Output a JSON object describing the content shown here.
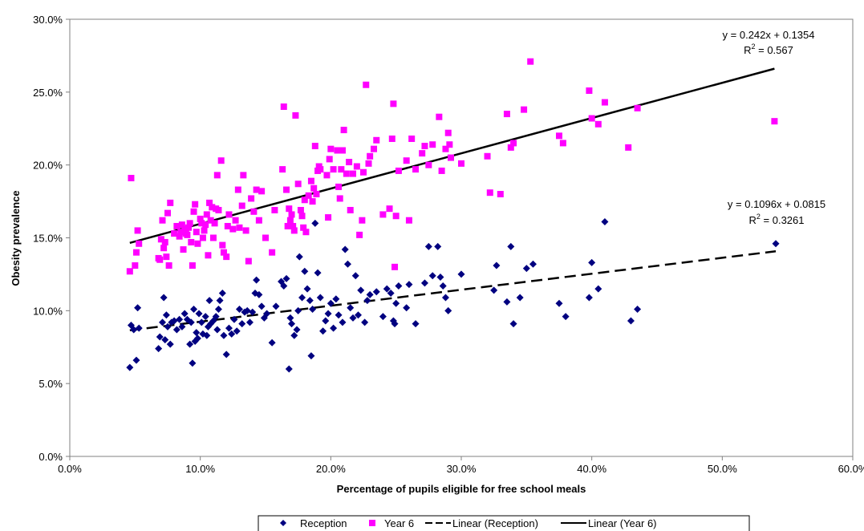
{
  "chart_data": {
    "type": "scatter",
    "title": "",
    "xlabel": "Percentage of pupils eligible for free school meals",
    "ylabel": "Obesity prevalence",
    "xlim": [
      0,
      0.6
    ],
    "ylim": [
      0,
      0.3
    ],
    "x_ticks": [
      "0.0%",
      "10.0%",
      "20.0%",
      "30.0%",
      "40.0%",
      "50.0%",
      "60.0%"
    ],
    "y_ticks": [
      "0.0%",
      "5.0%",
      "10.0%",
      "15.0%",
      "20.0%",
      "25.0%",
      "30.0%"
    ],
    "grid": false,
    "legend_position": "bottom",
    "series": [
      {
        "name": "Reception",
        "color": "#000080",
        "marker": "diamond",
        "points": [
          [
            0.046,
            0.061
          ],
          [
            0.047,
            0.09
          ],
          [
            0.049,
            0.087
          ],
          [
            0.051,
            0.066
          ],
          [
            0.052,
            0.102
          ],
          [
            0.053,
            0.088
          ],
          [
            0.068,
            0.074
          ],
          [
            0.069,
            0.082
          ],
          [
            0.071,
            0.092
          ],
          [
            0.072,
            0.109
          ],
          [
            0.073,
            0.08
          ],
          [
            0.074,
            0.097
          ],
          [
            0.075,
            0.089
          ],
          [
            0.077,
            0.077
          ],
          [
            0.078,
            0.092
          ],
          [
            0.08,
            0.093
          ],
          [
            0.082,
            0.087
          ],
          [
            0.084,
            0.094
          ],
          [
            0.086,
            0.089
          ],
          [
            0.088,
            0.098
          ],
          [
            0.09,
            0.094
          ],
          [
            0.092,
            0.077
          ],
          [
            0.093,
            0.092
          ],
          [
            0.094,
            0.064
          ],
          [
            0.095,
            0.101
          ],
          [
            0.096,
            0.079
          ],
          [
            0.097,
            0.085
          ],
          [
            0.098,
            0.081
          ],
          [
            0.099,
            0.098
          ],
          [
            0.101,
            0.092
          ],
          [
            0.102,
            0.084
          ],
          [
            0.104,
            0.096
          ],
          [
            0.105,
            0.083
          ],
          [
            0.106,
            0.089
          ],
          [
            0.107,
            0.107
          ],
          [
            0.108,
            0.091
          ],
          [
            0.11,
            0.093
          ],
          [
            0.112,
            0.096
          ],
          [
            0.113,
            0.087
          ],
          [
            0.114,
            0.101
          ],
          [
            0.115,
            0.107
          ],
          [
            0.117,
            0.112
          ],
          [
            0.118,
            0.083
          ],
          [
            0.12,
            0.07
          ],
          [
            0.122,
            0.088
          ],
          [
            0.124,
            0.084
          ],
          [
            0.126,
            0.094
          ],
          [
            0.128,
            0.086
          ],
          [
            0.13,
            0.101
          ],
          [
            0.132,
            0.091
          ],
          [
            0.134,
            0.099
          ],
          [
            0.136,
            0.1
          ],
          [
            0.138,
            0.092
          ],
          [
            0.14,
            0.099
          ],
          [
            0.142,
            0.112
          ],
          [
            0.143,
            0.121
          ],
          [
            0.145,
            0.111
          ],
          [
            0.147,
            0.103
          ],
          [
            0.149,
            0.095
          ],
          [
            0.151,
            0.098
          ],
          [
            0.155,
            0.078
          ],
          [
            0.158,
            0.103
          ],
          [
            0.162,
            0.12
          ],
          [
            0.164,
            0.117
          ],
          [
            0.166,
            0.122
          ],
          [
            0.168,
            0.06
          ],
          [
            0.169,
            0.095
          ],
          [
            0.17,
            0.091
          ],
          [
            0.172,
            0.083
          ],
          [
            0.174,
            0.087
          ],
          [
            0.175,
            0.1
          ],
          [
            0.176,
            0.137
          ],
          [
            0.178,
            0.109
          ],
          [
            0.18,
            0.127
          ],
          [
            0.182,
            0.115
          ],
          [
            0.184,
            0.107
          ],
          [
            0.185,
            0.069
          ],
          [
            0.186,
            0.101
          ],
          [
            0.188,
            0.16
          ],
          [
            0.19,
            0.126
          ],
          [
            0.192,
            0.109
          ],
          [
            0.194,
            0.086
          ],
          [
            0.196,
            0.093
          ],
          [
            0.198,
            0.098
          ],
          [
            0.2,
            0.105
          ],
          [
            0.202,
            0.088
          ],
          [
            0.204,
            0.108
          ],
          [
            0.206,
            0.097
          ],
          [
            0.209,
            0.092
          ],
          [
            0.211,
            0.142
          ],
          [
            0.213,
            0.132
          ],
          [
            0.215,
            0.102
          ],
          [
            0.217,
            0.095
          ],
          [
            0.219,
            0.124
          ],
          [
            0.221,
            0.097
          ],
          [
            0.223,
            0.114
          ],
          [
            0.226,
            0.092
          ],
          [
            0.228,
            0.107
          ],
          [
            0.23,
            0.111
          ],
          [
            0.235,
            0.113
          ],
          [
            0.24,
            0.096
          ],
          [
            0.243,
            0.115
          ],
          [
            0.246,
            0.112
          ],
          [
            0.248,
            0.093
          ],
          [
            0.249,
            0.091
          ],
          [
            0.25,
            0.105
          ],
          [
            0.252,
            0.117
          ],
          [
            0.258,
            0.102
          ],
          [
            0.26,
            0.118
          ],
          [
            0.265,
            0.091
          ],
          [
            0.272,
            0.119
          ],
          [
            0.275,
            0.144
          ],
          [
            0.278,
            0.124
          ],
          [
            0.282,
            0.144
          ],
          [
            0.284,
            0.123
          ],
          [
            0.286,
            0.117
          ],
          [
            0.288,
            0.109
          ],
          [
            0.29,
            0.1
          ],
          [
            0.3,
            0.125
          ],
          [
            0.325,
            0.114
          ],
          [
            0.327,
            0.131
          ],
          [
            0.335,
            0.106
          ],
          [
            0.338,
            0.144
          ],
          [
            0.34,
            0.091
          ],
          [
            0.345,
            0.109
          ],
          [
            0.35,
            0.129
          ],
          [
            0.355,
            0.132
          ],
          [
            0.375,
            0.105
          ],
          [
            0.38,
            0.096
          ],
          [
            0.398,
            0.109
          ],
          [
            0.4,
            0.133
          ],
          [
            0.405,
            0.115
          ],
          [
            0.41,
            0.161
          ],
          [
            0.43,
            0.093
          ],
          [
            0.435,
            0.101
          ],
          [
            0.541,
            0.146
          ]
        ],
        "trendline": {
          "name": "Linear (Reception)",
          "slope": 0.1096,
          "intercept": 0.0815,
          "style": "dashed",
          "equation": "y = 0.1096x + 0.0815",
          "r2_label": "R",
          "r2_value": " = 0.3261"
        }
      },
      {
        "name": "Year 6",
        "color": "#FF00FF",
        "marker": "square",
        "points": [
          [
            0.046,
            0.127
          ],
          [
            0.047,
            0.191
          ],
          [
            0.05,
            0.131
          ],
          [
            0.052,
            0.155
          ],
          [
            0.053,
            0.146
          ],
          [
            0.051,
            0.14
          ],
          [
            0.068,
            0.136
          ],
          [
            0.069,
            0.135
          ],
          [
            0.07,
            0.149
          ],
          [
            0.071,
            0.162
          ],
          [
            0.072,
            0.143
          ],
          [
            0.073,
            0.147
          ],
          [
            0.074,
            0.137
          ],
          [
            0.075,
            0.167
          ],
          [
            0.076,
            0.131
          ],
          [
            0.077,
            0.174
          ],
          [
            0.08,
            0.153
          ],
          [
            0.082,
            0.158
          ],
          [
            0.084,
            0.151
          ],
          [
            0.085,
            0.154
          ],
          [
            0.086,
            0.159
          ],
          [
            0.087,
            0.142
          ],
          [
            0.088,
            0.156
          ],
          [
            0.089,
            0.153
          ],
          [
            0.09,
            0.152
          ],
          [
            0.091,
            0.157
          ],
          [
            0.092,
            0.16
          ],
          [
            0.093,
            0.147
          ],
          [
            0.094,
            0.131
          ],
          [
            0.095,
            0.168
          ],
          [
            0.096,
            0.173
          ],
          [
            0.097,
            0.154
          ],
          [
            0.098,
            0.146
          ],
          [
            0.1,
            0.163
          ],
          [
            0.101,
            0.16
          ],
          [
            0.102,
            0.15
          ],
          [
            0.103,
            0.155
          ],
          [
            0.104,
            0.159
          ],
          [
            0.105,
            0.166
          ],
          [
            0.106,
            0.138
          ],
          [
            0.107,
            0.174
          ],
          [
            0.108,
            0.162
          ],
          [
            0.109,
            0.171
          ],
          [
            0.11,
            0.15
          ],
          [
            0.111,
            0.16
          ],
          [
            0.112,
            0.17
          ],
          [
            0.113,
            0.193
          ],
          [
            0.114,
            0.169
          ],
          [
            0.116,
            0.203
          ],
          [
            0.117,
            0.145
          ],
          [
            0.118,
            0.14
          ],
          [
            0.12,
            0.137
          ],
          [
            0.121,
            0.158
          ],
          [
            0.122,
            0.166
          ],
          [
            0.125,
            0.156
          ],
          [
            0.127,
            0.162
          ],
          [
            0.129,
            0.183
          ],
          [
            0.13,
            0.157
          ],
          [
            0.132,
            0.172
          ],
          [
            0.133,
            0.193
          ],
          [
            0.135,
            0.155
          ],
          [
            0.137,
            0.134
          ],
          [
            0.139,
            0.177
          ],
          [
            0.141,
            0.168
          ],
          [
            0.143,
            0.183
          ],
          [
            0.145,
            0.162
          ],
          [
            0.147,
            0.182
          ],
          [
            0.15,
            0.15
          ],
          [
            0.155,
            0.14
          ],
          [
            0.157,
            0.169
          ],
          [
            0.163,
            0.197
          ],
          [
            0.164,
            0.24
          ],
          [
            0.166,
            0.183
          ],
          [
            0.167,
            0.158
          ],
          [
            0.168,
            0.17
          ],
          [
            0.169,
            0.162
          ],
          [
            0.17,
            0.166
          ],
          [
            0.171,
            0.158
          ],
          [
            0.172,
            0.155
          ],
          [
            0.173,
            0.234
          ],
          [
            0.175,
            0.187
          ],
          [
            0.177,
            0.169
          ],
          [
            0.178,
            0.165
          ],
          [
            0.179,
            0.157
          ],
          [
            0.18,
            0.176
          ],
          [
            0.181,
            0.154
          ],
          [
            0.183,
            0.179
          ],
          [
            0.185,
            0.189
          ],
          [
            0.186,
            0.175
          ],
          [
            0.187,
            0.184
          ],
          [
            0.188,
            0.213
          ],
          [
            0.189,
            0.18
          ],
          [
            0.19,
            0.196
          ],
          [
            0.191,
            0.199
          ],
          [
            0.192,
            0.197
          ],
          [
            0.197,
            0.193
          ],
          [
            0.198,
            0.164
          ],
          [
            0.199,
            0.204
          ],
          [
            0.2,
            0.211
          ],
          [
            0.202,
            0.197
          ],
          [
            0.205,
            0.21
          ],
          [
            0.206,
            0.185
          ],
          [
            0.207,
            0.177
          ],
          [
            0.208,
            0.197
          ],
          [
            0.209,
            0.21
          ],
          [
            0.21,
            0.224
          ],
          [
            0.212,
            0.194
          ],
          [
            0.214,
            0.202
          ],
          [
            0.215,
            0.169
          ],
          [
            0.217,
            0.194
          ],
          [
            0.22,
            0.199
          ],
          [
            0.222,
            0.152
          ],
          [
            0.224,
            0.162
          ],
          [
            0.225,
            0.195
          ],
          [
            0.227,
            0.255
          ],
          [
            0.229,
            0.201
          ],
          [
            0.23,
            0.206
          ],
          [
            0.233,
            0.211
          ],
          [
            0.235,
            0.217
          ],
          [
            0.24,
            0.166
          ],
          [
            0.245,
            0.17
          ],
          [
            0.247,
            0.218
          ],
          [
            0.248,
            0.242
          ],
          [
            0.249,
            0.13
          ],
          [
            0.25,
            0.165
          ],
          [
            0.252,
            0.196
          ],
          [
            0.258,
            0.203
          ],
          [
            0.26,
            0.162
          ],
          [
            0.262,
            0.218
          ],
          [
            0.265,
            0.197
          ],
          [
            0.27,
            0.208
          ],
          [
            0.272,
            0.213
          ],
          [
            0.275,
            0.2
          ],
          [
            0.278,
            0.214
          ],
          [
            0.283,
            0.233
          ],
          [
            0.285,
            0.196
          ],
          [
            0.288,
            0.211
          ],
          [
            0.29,
            0.222
          ],
          [
            0.291,
            0.214
          ],
          [
            0.292,
            0.205
          ],
          [
            0.3,
            0.201
          ],
          [
            0.32,
            0.206
          ],
          [
            0.322,
            0.181
          ],
          [
            0.33,
            0.18
          ],
          [
            0.335,
            0.235
          ],
          [
            0.338,
            0.212
          ],
          [
            0.34,
            0.215
          ],
          [
            0.348,
            0.238
          ],
          [
            0.353,
            0.271
          ],
          [
            0.375,
            0.22
          ],
          [
            0.378,
            0.215
          ],
          [
            0.398,
            0.251
          ],
          [
            0.4,
            0.232
          ],
          [
            0.405,
            0.228
          ],
          [
            0.41,
            0.243
          ],
          [
            0.428,
            0.212
          ],
          [
            0.435,
            0.239
          ],
          [
            0.54,
            0.23
          ]
        ],
        "trendline": {
          "name": "Linear (Year 6)",
          "slope": 0.242,
          "intercept": 0.1354,
          "style": "solid",
          "equation": "y = 0.242x + 0.1354",
          "r2_label": "R",
          "r2_value": " = 0.567"
        }
      }
    ],
    "legend": [
      "Reception",
      "Year 6",
      "Linear (Reception)",
      "Linear (Year 6)"
    ]
  }
}
